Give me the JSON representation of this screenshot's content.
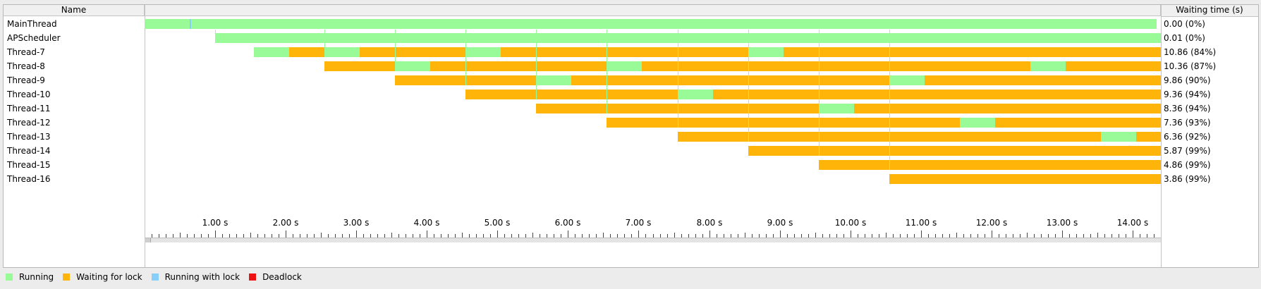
{
  "columns": {
    "name": "Name",
    "waiting": "Waiting time (s)"
  },
  "colors": {
    "running": "#98fb98",
    "waiting_for_lock": "#ffb40a",
    "running_with_lock": "#87cefa",
    "deadlock": "#ee1111",
    "marker": "#98fb98"
  },
  "legend": [
    {
      "key": "running",
      "label": "Running"
    },
    {
      "key": "waiting_for_lock",
      "label": "Waiting for lock"
    },
    {
      "key": "running_with_lock",
      "label": "Running with lock"
    },
    {
      "key": "deadlock",
      "label": "Deadlock"
    }
  ],
  "time_axis": {
    "max_seconds": 14.4,
    "ticks": [
      "1.00 s",
      "2.00 s",
      "3.00 s",
      "4.00 s",
      "5.00 s",
      "6.00 s",
      "7.00 s",
      "8.00 s",
      "9.00 s",
      "10.00 s",
      "11.00 s",
      "12.00 s",
      "13.00 s",
      "14.00 s"
    ]
  },
  "thread_start_markers": [
    1.0,
    2.55,
    3.55,
    4.55,
    5.55,
    6.55,
    7.55,
    8.55,
    9.55,
    10.55
  ],
  "threads": [
    {
      "name": "MainThread",
      "waiting": "0.00 (0%)",
      "segments": [
        {
          "s": 0.0,
          "e": 0.64,
          "state": "running"
        },
        {
          "s": 0.64,
          "e": 0.66,
          "state": "running_with_lock"
        },
        {
          "s": 0.66,
          "e": 14.34,
          "state": "running"
        }
      ]
    },
    {
      "name": "APScheduler",
      "waiting": "0.01 (0%)",
      "segments": [
        {
          "s": 1.0,
          "e": 14.4,
          "state": "running"
        }
      ]
    },
    {
      "name": "Thread-7",
      "waiting": "10.86 (84%)",
      "segments": [
        {
          "s": 1.55,
          "e": 2.05,
          "state": "running"
        },
        {
          "s": 2.05,
          "e": 2.55,
          "state": "waiting_for_lock"
        },
        {
          "s": 2.55,
          "e": 3.05,
          "state": "running"
        },
        {
          "s": 3.05,
          "e": 4.55,
          "state": "waiting_for_lock"
        },
        {
          "s": 4.55,
          "e": 5.05,
          "state": "running"
        },
        {
          "s": 5.05,
          "e": 8.55,
          "state": "waiting_for_lock"
        },
        {
          "s": 8.55,
          "e": 9.05,
          "state": "running"
        },
        {
          "s": 9.05,
          "e": 14.4,
          "state": "waiting_for_lock"
        }
      ]
    },
    {
      "name": "Thread-8",
      "waiting": "10.36 (87%)",
      "segments": [
        {
          "s": 2.55,
          "e": 3.55,
          "state": "waiting_for_lock"
        },
        {
          "s": 3.55,
          "e": 4.05,
          "state": "running"
        },
        {
          "s": 4.05,
          "e": 6.55,
          "state": "waiting_for_lock"
        },
        {
          "s": 6.55,
          "e": 7.05,
          "state": "running"
        },
        {
          "s": 7.05,
          "e": 12.55,
          "state": "waiting_for_lock"
        },
        {
          "s": 12.55,
          "e": 13.05,
          "state": "running"
        },
        {
          "s": 13.05,
          "e": 14.4,
          "state": "waiting_for_lock"
        }
      ]
    },
    {
      "name": "Thread-9",
      "waiting": "9.86 (90%)",
      "segments": [
        {
          "s": 3.55,
          "e": 5.55,
          "state": "waiting_for_lock"
        },
        {
          "s": 5.55,
          "e": 6.05,
          "state": "running"
        },
        {
          "s": 6.05,
          "e": 10.55,
          "state": "waiting_for_lock"
        },
        {
          "s": 10.55,
          "e": 11.05,
          "state": "running"
        },
        {
          "s": 11.05,
          "e": 14.4,
          "state": "waiting_for_lock"
        }
      ]
    },
    {
      "name": "Thread-10",
      "waiting": "9.36 (94%)",
      "segments": [
        {
          "s": 4.55,
          "e": 7.55,
          "state": "waiting_for_lock"
        },
        {
          "s": 7.55,
          "e": 8.05,
          "state": "running"
        },
        {
          "s": 8.05,
          "e": 14.4,
          "state": "waiting_for_lock"
        }
      ]
    },
    {
      "name": "Thread-11",
      "waiting": "8.36 (94%)",
      "segments": [
        {
          "s": 5.55,
          "e": 9.55,
          "state": "waiting_for_lock"
        },
        {
          "s": 9.55,
          "e": 10.05,
          "state": "running"
        },
        {
          "s": 10.05,
          "e": 14.4,
          "state": "waiting_for_lock"
        }
      ]
    },
    {
      "name": "Thread-12",
      "waiting": "7.36 (93%)",
      "segments": [
        {
          "s": 6.55,
          "e": 11.55,
          "state": "waiting_for_lock"
        },
        {
          "s": 11.55,
          "e": 12.05,
          "state": "running"
        },
        {
          "s": 12.05,
          "e": 14.4,
          "state": "waiting_for_lock"
        }
      ]
    },
    {
      "name": "Thread-13",
      "waiting": "6.36 (92%)",
      "segments": [
        {
          "s": 7.55,
          "e": 13.55,
          "state": "waiting_for_lock"
        },
        {
          "s": 13.55,
          "e": 14.05,
          "state": "running"
        },
        {
          "s": 14.05,
          "e": 14.4,
          "state": "waiting_for_lock"
        }
      ]
    },
    {
      "name": "Thread-14",
      "waiting": "5.87 (99%)",
      "segments": [
        {
          "s": 8.55,
          "e": 14.4,
          "state": "waiting_for_lock"
        }
      ]
    },
    {
      "name": "Thread-15",
      "waiting": "4.86 (99%)",
      "segments": [
        {
          "s": 9.55,
          "e": 14.4,
          "state": "waiting_for_lock"
        }
      ]
    },
    {
      "name": "Thread-16",
      "waiting": "3.86 (99%)",
      "segments": [
        {
          "s": 10.55,
          "e": 14.4,
          "state": "waiting_for_lock"
        }
      ]
    }
  ]
}
